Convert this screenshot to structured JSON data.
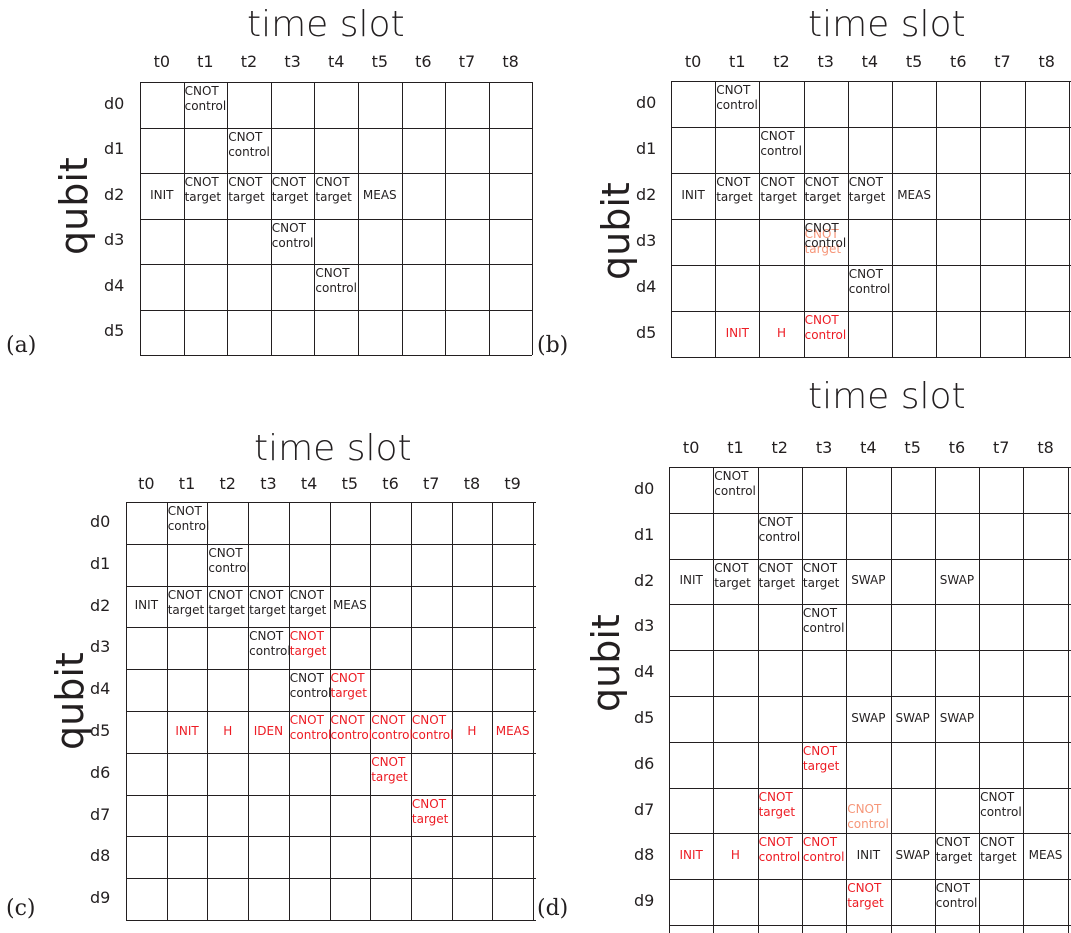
{
  "panels": {
    "a": {
      "label": "(a)",
      "title": "time slot",
      "ylabel": "qubit",
      "cols": [
        "t0",
        "t1",
        "t2",
        "t3",
        "t4",
        "t5",
        "t6",
        "t7",
        "t8"
      ],
      "rows": [
        "d0",
        "d1",
        "d2",
        "d3",
        "d4",
        "d5"
      ],
      "cells": [
        {
          "row": 0,
          "col": 1,
          "l1": "CNOT",
          "l2": "control",
          "color": "black"
        },
        {
          "row": 1,
          "col": 2,
          "l1": "CNOT",
          "l2": "control",
          "color": "black"
        },
        {
          "row": 2,
          "col": 0,
          "single": "INIT",
          "color": "black"
        },
        {
          "row": 2,
          "col": 1,
          "l1": "CNOT",
          "l2": "target",
          "color": "black"
        },
        {
          "row": 2,
          "col": 2,
          "l1": "CNOT",
          "l2": "target",
          "color": "black"
        },
        {
          "row": 2,
          "col": 3,
          "l1": "CNOT",
          "l2": "target",
          "color": "black"
        },
        {
          "row": 2,
          "col": 4,
          "l1": "CNOT",
          "l2": "target",
          "color": "black"
        },
        {
          "row": 2,
          "col": 5,
          "single": "MEAS",
          "color": "black"
        },
        {
          "row": 3,
          "col": 3,
          "l1": "CNOT",
          "l2": "control",
          "color": "black"
        },
        {
          "row": 4,
          "col": 4,
          "l1": "CNOT",
          "l2": "control",
          "color": "black"
        }
      ]
    },
    "b": {
      "label": "(b)",
      "title": "time slot",
      "ylabel": "qubit",
      "cols": [
        "t0",
        "t1",
        "t2",
        "t3",
        "t4",
        "t5",
        "t6",
        "t7",
        "t8"
      ],
      "rows": [
        "d0",
        "d1",
        "d2",
        "d3",
        "d4",
        "d5"
      ],
      "cells": [
        {
          "row": 0,
          "col": 1,
          "l1": "CNOT",
          "l2": "control",
          "color": "black"
        },
        {
          "row": 1,
          "col": 2,
          "l1": "CNOT",
          "l2": "control",
          "color": "black"
        },
        {
          "row": 2,
          "col": 0,
          "single": "INIT",
          "color": "black"
        },
        {
          "row": 2,
          "col": 1,
          "l1": "CNOT",
          "l2": "target",
          "color": "black"
        },
        {
          "row": 2,
          "col": 2,
          "l1": "CNOT",
          "l2": "target",
          "color": "black"
        },
        {
          "row": 2,
          "col": 3,
          "l1": "CNOT",
          "l2": "target",
          "color": "black"
        },
        {
          "row": 2,
          "col": 4,
          "l1": "CNOT",
          "l2": "target",
          "color": "black"
        },
        {
          "row": 2,
          "col": 5,
          "single": "MEAS",
          "color": "black"
        },
        {
          "row": 3,
          "col": 3,
          "l1": "CNOT",
          "l2": "target",
          "color": "pink",
          "offset": "faded"
        },
        {
          "row": 3,
          "col": 3,
          "l1": "CNOT",
          "l2": "control",
          "color": "black"
        },
        {
          "row": 4,
          "col": 4,
          "l1": "CNOT",
          "l2": "control",
          "color": "black"
        },
        {
          "row": 5,
          "col": 1,
          "single": "INIT",
          "color": "red"
        },
        {
          "row": 5,
          "col": 2,
          "single": "H",
          "color": "red"
        },
        {
          "row": 5,
          "col": 3,
          "l1": "CNOT",
          "l2": "control",
          "color": "red"
        }
      ]
    },
    "c": {
      "label": "(c)",
      "title": "time slot",
      "ylabel": "qubit",
      "cols": [
        "t0",
        "t1",
        "t2",
        "t3",
        "t4",
        "t5",
        "t6",
        "t7",
        "t8",
        "t9"
      ],
      "rows": [
        "d0",
        "d1",
        "d2",
        "d3",
        "d4",
        "d5",
        "d6",
        "d7",
        "d8",
        "d9"
      ],
      "cells": [
        {
          "row": 0,
          "col": 1,
          "l1": "CNOT",
          "l2": "control",
          "color": "black"
        },
        {
          "row": 1,
          "col": 2,
          "l1": "CNOT",
          "l2": "control",
          "color": "black"
        },
        {
          "row": 2,
          "col": 0,
          "single": "INIT",
          "color": "black"
        },
        {
          "row": 2,
          "col": 1,
          "l1": "CNOT",
          "l2": "target",
          "color": "black"
        },
        {
          "row": 2,
          "col": 2,
          "l1": "CNOT",
          "l2": "target",
          "color": "black"
        },
        {
          "row": 2,
          "col": 3,
          "l1": "CNOT",
          "l2": "target",
          "color": "black"
        },
        {
          "row": 2,
          "col": 4,
          "l1": "CNOT",
          "l2": "target",
          "color": "black"
        },
        {
          "row": 2,
          "col": 5,
          "single": "MEAS",
          "color": "black"
        },
        {
          "row": 3,
          "col": 3,
          "l1": "CNOT",
          "l2": "control",
          "color": "black"
        },
        {
          "row": 3,
          "col": 4,
          "l1": "CNOT",
          "l2": "target",
          "color": "red"
        },
        {
          "row": 4,
          "col": 4,
          "l1": "CNOT",
          "l2": "control",
          "color": "black"
        },
        {
          "row": 4,
          "col": 5,
          "l1": "CNOT",
          "l2": "target",
          "color": "red"
        },
        {
          "row": 5,
          "col": 1,
          "single": "INIT",
          "color": "red"
        },
        {
          "row": 5,
          "col": 2,
          "single": "H",
          "color": "red"
        },
        {
          "row": 5,
          "col": 3,
          "single": "IDEN",
          "color": "red"
        },
        {
          "row": 5,
          "col": 4,
          "l1": "CNOT",
          "l2": "control",
          "color": "red"
        },
        {
          "row": 5,
          "col": 5,
          "l1": "CNOT",
          "l2": "control",
          "color": "red"
        },
        {
          "row": 5,
          "col": 6,
          "l1": "CNOT",
          "l2": "control",
          "color": "red"
        },
        {
          "row": 5,
          "col": 7,
          "l1": "CNOT",
          "l2": "control",
          "color": "red"
        },
        {
          "row": 5,
          "col": 8,
          "single": "H",
          "color": "red"
        },
        {
          "row": 5,
          "col": 9,
          "single": "MEAS",
          "color": "red"
        },
        {
          "row": 6,
          "col": 6,
          "l1": "CNOT",
          "l2": "target",
          "color": "red"
        },
        {
          "row": 7,
          "col": 7,
          "l1": "CNOT",
          "l2": "target",
          "color": "red"
        }
      ]
    },
    "d": {
      "label": "(d)",
      "title": "time slot",
      "ylabel": "qubit",
      "cols": [
        "t0",
        "t1",
        "t2",
        "t3",
        "t4",
        "t5",
        "t6",
        "t7",
        "t8"
      ],
      "rows": [
        "d0",
        "d1",
        "d2",
        "d3",
        "d4",
        "d5",
        "d6",
        "d7",
        "d8",
        "d9"
      ],
      "cells": [
        {
          "row": 0,
          "col": 1,
          "l1": "CNOT",
          "l2": "control",
          "color": "black"
        },
        {
          "row": 1,
          "col": 2,
          "l1": "CNOT",
          "l2": "control",
          "color": "black"
        },
        {
          "row": 2,
          "col": 0,
          "single": "INIT",
          "color": "black"
        },
        {
          "row": 2,
          "col": 1,
          "l1": "CNOT",
          "l2": "target",
          "color": "black"
        },
        {
          "row": 2,
          "col": 2,
          "l1": "CNOT",
          "l2": "target",
          "color": "black"
        },
        {
          "row": 2,
          "col": 3,
          "l1": "CNOT",
          "l2": "target",
          "color": "black"
        },
        {
          "row": 2,
          "col": 4,
          "single": "SWAP",
          "color": "black"
        },
        {
          "row": 2,
          "col": 6,
          "single": "SWAP",
          "color": "black"
        },
        {
          "row": 3,
          "col": 3,
          "l1": "CNOT",
          "l2": "control",
          "color": "black"
        },
        {
          "row": 5,
          "col": 4,
          "single": "SWAP",
          "color": "black"
        },
        {
          "row": 5,
          "col": 5,
          "single": "SWAP",
          "color": "black"
        },
        {
          "row": 5,
          "col": 6,
          "single": "SWAP",
          "color": "black"
        },
        {
          "row": 6,
          "col": 3,
          "l1": "CNOT",
          "l2": "target",
          "color": "red"
        },
        {
          "row": 7,
          "col": 2,
          "l1": "CNOT",
          "l2": "target",
          "color": "red"
        },
        {
          "row": 7,
          "col": 4,
          "l1": "CNOT",
          "l2": "control",
          "color": "pink",
          "offset": "low"
        },
        {
          "row": 7,
          "col": 7,
          "l1": "CNOT",
          "l2": "control",
          "color": "black"
        },
        {
          "row": 8,
          "col": 0,
          "single": "INIT",
          "color": "red"
        },
        {
          "row": 8,
          "col": 1,
          "single": "H",
          "color": "red"
        },
        {
          "row": 8,
          "col": 2,
          "l1": "CNOT",
          "l2": "control",
          "color": "red"
        },
        {
          "row": 8,
          "col": 3,
          "l1": "CNOT",
          "l2": "control",
          "color": "red"
        },
        {
          "row": 8,
          "col": 4,
          "single": "INIT",
          "color": "black"
        },
        {
          "row": 8,
          "col": 5,
          "single": "SWAP",
          "color": "black"
        },
        {
          "row": 8,
          "col": 6,
          "l1": "CNOT",
          "l2": "target",
          "color": "black"
        },
        {
          "row": 8,
          "col": 7,
          "l1": "CNOT",
          "l2": "target",
          "color": "black"
        },
        {
          "row": 8,
          "col": 8,
          "single": "MEAS",
          "color": "black"
        },
        {
          "row": 9,
          "col": 4,
          "l1": "CNOT",
          "l2": "target",
          "color": "red"
        },
        {
          "row": 9,
          "col": 6,
          "l1": "CNOT",
          "l2": "control",
          "color": "black"
        }
      ]
    }
  }
}
